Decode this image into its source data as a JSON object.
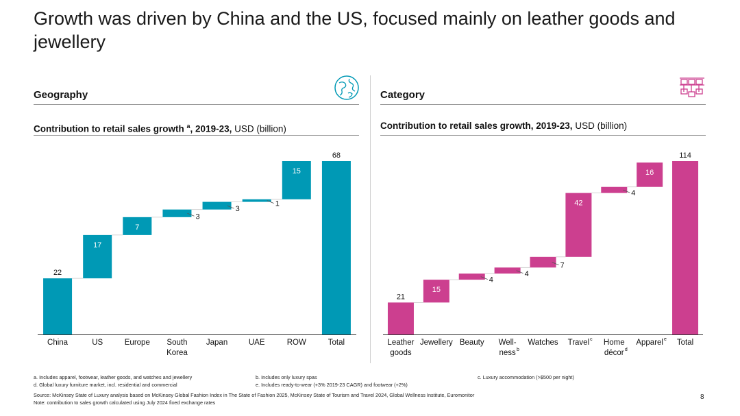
{
  "title": "Growth was driven by China and the US, focused mainly on leather goods and jewellery",
  "colors": {
    "geo": "#0099b5",
    "cat": "#cc3f8f"
  },
  "geography": {
    "heading": "Geography",
    "icon": "globe-icon",
    "subtitle_bold": "Contribution to retail sales growth",
    "subtitle_sup": "a",
    "subtitle_bold2": ", 2019-23,",
    "subtitle_unit": " USD (billion)"
  },
  "category": {
    "heading": "Category",
    "icon": "boxes-icon",
    "subtitle_bold": "Contribution to retail sales growth, 2019-23,",
    "subtitle_unit": " USD (billion)"
  },
  "chart_data": [
    {
      "type": "bar",
      "subtype": "waterfall",
      "title": "Contribution to retail sales growth a, 2019-23, USD (billion)",
      "categories": [
        "China",
        "US",
        "Europe",
        "South Korea",
        "Japan",
        "UAE",
        "ROW",
        "Total"
      ],
      "category_lines": [
        [
          "China"
        ],
        [
          "US"
        ],
        [
          "Europe"
        ],
        [
          "South",
          "Korea"
        ],
        [
          "Japan"
        ],
        [
          "UAE"
        ],
        [
          "ROW"
        ],
        [
          "Total"
        ]
      ],
      "values": [
        22,
        17,
        7,
        3,
        3,
        1,
        15,
        68
      ],
      "labels": [
        "22",
        "17",
        "7",
        "3",
        "3",
        "1",
        "15",
        "68"
      ],
      "is_total": [
        false,
        false,
        false,
        false,
        false,
        false,
        false,
        true
      ],
      "ylim": [
        0,
        68
      ]
    },
    {
      "type": "bar",
      "subtype": "waterfall",
      "title": "Contribution to retail sales growth, 2019-23, USD (billion)",
      "categories": [
        "Leather goods",
        "Jewellery",
        "Beauty",
        "Wellness b",
        "Watches",
        "Travel c",
        "Home décor d",
        "Apparel e",
        "Total"
      ],
      "category_lines": [
        [
          "Leather",
          "goods"
        ],
        [
          "Jewellery"
        ],
        [
          "Beauty"
        ],
        [
          "Well-",
          "ness",
          "b"
        ],
        [
          "Watches"
        ],
        [
          "Travel",
          "c"
        ],
        [
          "Home",
          "décor",
          "d"
        ],
        [
          "Apparel",
          "e"
        ],
        [
          "Total"
        ]
      ],
      "values": [
        21,
        15,
        4,
        4,
        7,
        42,
        4,
        16,
        114
      ],
      "labels": [
        "21",
        "15",
        "4",
        "4",
        "7",
        "42",
        "4",
        "16",
        "114"
      ],
      "is_total": [
        false,
        false,
        false,
        false,
        false,
        false,
        false,
        false,
        true
      ],
      "ylim": [
        0,
        114
      ]
    }
  ],
  "footnotes": {
    "a": "a.   Includes apparel, footwear, leather goods, and watches and jewellery",
    "b": "b.   Includes only luxury spas",
    "c": "c.   Luxury accommodation (>$500 per night)",
    "d": "d.   Global luxury furniture market, incl. residential and commercial",
    "e": "e.   Includes ready-to-wear (+3% 2019-23 CAGR) and footwear (+2%)",
    "source": "Source: McKinsey State of Luxury analysis based on McKinsey Global Fashion Index in The State of Fashion 2025, McKinsey State of Tourism and Travel 2024, Global Wellness Institute, Euromonitor",
    "note": "Note: contribution to sales growth calculated using July 2024 fixed exchange rates"
  },
  "page_number": "8"
}
